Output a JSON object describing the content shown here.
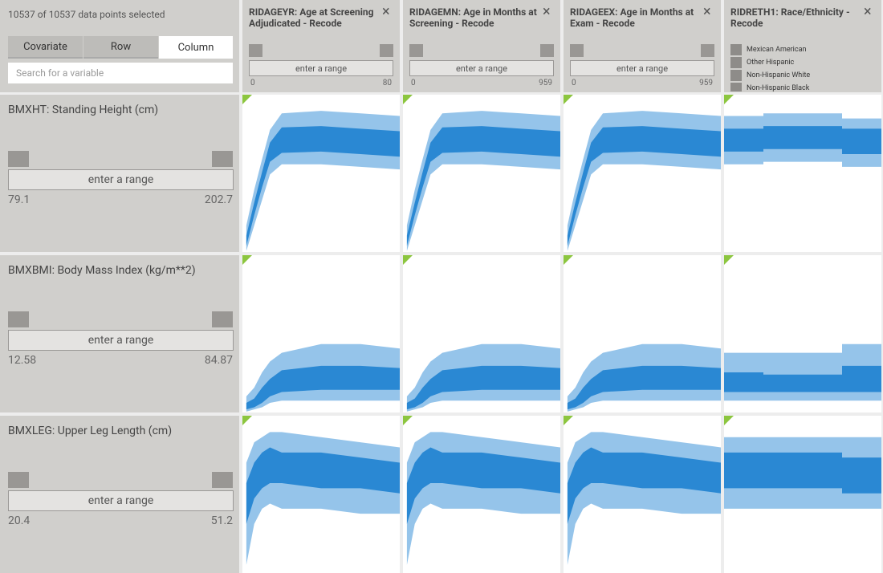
{
  "status": "10537 of 10537 data points selected",
  "tabs": [
    "Covariate",
    "Row",
    "Column"
  ],
  "active_tab": 2,
  "search_placeholder": "Search for a variable",
  "range_placeholder": "enter a range",
  "columns": [
    {
      "title": "RIDAGEYR: Age at Screening Adjudicated - Recode",
      "min": 0,
      "max": 80,
      "x": [
        2,
        6,
        10,
        14,
        20,
        40,
        60,
        80
      ]
    },
    {
      "title": "RIDAGEMN: Age in Months at Screening - Recode",
      "min": 0,
      "max": 959,
      "x": [
        24,
        72,
        120,
        168,
        240,
        480,
        720,
        959
      ]
    },
    {
      "title": "RIDAGEEX: Age in Months at Exam - Recode",
      "min": 0,
      "max": 959,
      "x": [
        24,
        72,
        120,
        168,
        240,
        480,
        720,
        959
      ]
    },
    {
      "title": "RIDRETH1: Race/Ethnicity - Recode",
      "legend": [
        "Mexican American",
        "Other Hispanic",
        "Non-Hispanic White",
        "Non-Hispanic Black"
      ]
    }
  ],
  "rows": [
    {
      "title": "BMXHT: Standing Height (cm)",
      "min": 79.1,
      "max": 202.7,
      "cells": [
        {
          "outer_low": [
            80,
            100,
            120,
            140,
            148,
            148,
            146,
            144
          ],
          "inner_low": [
            84,
            108,
            130,
            150,
            157,
            158,
            156,
            154
          ],
          "inner_high": [
            92,
            118,
            142,
            165,
            177,
            178,
            176,
            174
          ],
          "outer_high": [
            100,
            128,
            152,
            175,
            188,
            190,
            188,
            186
          ]
        },
        {
          "outer_low": [
            80,
            100,
            120,
            140,
            148,
            148,
            146,
            144
          ],
          "inner_low": [
            84,
            108,
            130,
            150,
            157,
            158,
            156,
            154
          ],
          "inner_high": [
            92,
            118,
            142,
            165,
            177,
            178,
            176,
            174
          ],
          "outer_high": [
            100,
            128,
            152,
            175,
            188,
            190,
            188,
            186
          ]
        },
        {
          "outer_low": [
            80,
            100,
            120,
            140,
            148,
            148,
            146,
            144
          ],
          "inner_low": [
            84,
            108,
            130,
            150,
            157,
            158,
            156,
            154
          ],
          "inner_high": [
            92,
            118,
            142,
            165,
            177,
            178,
            176,
            174
          ],
          "outer_high": [
            100,
            128,
            152,
            175,
            188,
            190,
            188,
            186
          ]
        },
        {
          "outer_low": [
            148,
            150,
            150,
            146
          ],
          "inner_low": [
            158,
            160,
            160,
            156
          ],
          "inner_high": [
            176,
            178,
            178,
            176
          ],
          "outer_high": [
            186,
            188,
            188,
            184
          ]
        }
      ]
    },
    {
      "title": "BMXBMI: Body Mass Index (kg/m**2)",
      "min": 12.58,
      "max": 84.87,
      "cells": [
        {
          "outer_low": [
            13,
            14,
            15,
            17,
            18,
            18,
            18,
            18
          ],
          "inner_low": [
            14,
            15,
            17,
            20,
            22,
            23,
            23,
            23
          ],
          "inner_high": [
            17,
            19,
            24,
            28,
            32,
            34,
            34,
            33
          ],
          "outer_high": [
            20,
            24,
            31,
            36,
            40,
            44,
            44,
            42
          ]
        },
        {
          "outer_low": [
            13,
            14,
            15,
            17,
            18,
            18,
            18,
            18
          ],
          "inner_low": [
            14,
            15,
            17,
            20,
            22,
            23,
            23,
            23
          ],
          "inner_high": [
            17,
            19,
            24,
            28,
            32,
            34,
            34,
            33
          ],
          "outer_high": [
            20,
            24,
            31,
            36,
            40,
            44,
            44,
            42
          ]
        },
        {
          "outer_low": [
            13,
            14,
            15,
            17,
            18,
            18,
            18,
            18
          ],
          "inner_low": [
            14,
            15,
            17,
            20,
            22,
            23,
            23,
            23
          ],
          "inner_high": [
            17,
            19,
            24,
            28,
            32,
            34,
            34,
            33
          ],
          "outer_high": [
            20,
            24,
            31,
            36,
            40,
            44,
            44,
            42
          ]
        },
        {
          "outer_low": [
            18,
            18,
            18,
            18
          ],
          "inner_low": [
            22,
            22,
            22,
            22
          ],
          "inner_high": [
            31,
            30,
            30,
            34
          ],
          "outer_high": [
            40,
            40,
            40,
            44
          ]
        }
      ]
    },
    {
      "title": "BMXLEG: Upper Leg Length (cm)",
      "min": 20.4,
      "max": 51.2,
      "cells": [
        {
          "outer_low": [
            22,
            30,
            33,
            34,
            33,
            33,
            32,
            32
          ],
          "inner_low": [
            30,
            35,
            37,
            38,
            38,
            37,
            37,
            36
          ],
          "inner_high": [
            38,
            42,
            44,
            45,
            44,
            44,
            43,
            42
          ],
          "outer_high": [
            42,
            46,
            47,
            48,
            48,
            47,
            46,
            45
          ]
        },
        {
          "outer_low": [
            22,
            30,
            33,
            34,
            33,
            33,
            32,
            32
          ],
          "inner_low": [
            30,
            35,
            37,
            38,
            38,
            37,
            37,
            36
          ],
          "inner_high": [
            38,
            42,
            44,
            45,
            44,
            44,
            43,
            42
          ],
          "outer_high": [
            42,
            46,
            47,
            48,
            48,
            47,
            46,
            45
          ]
        },
        {
          "outer_low": [
            22,
            30,
            33,
            34,
            33,
            33,
            32,
            32
          ],
          "inner_low": [
            30,
            35,
            37,
            38,
            38,
            37,
            37,
            36
          ],
          "inner_high": [
            38,
            42,
            44,
            45,
            44,
            44,
            43,
            42
          ],
          "outer_high": [
            42,
            46,
            47,
            48,
            48,
            47,
            46,
            45
          ]
        },
        {
          "outer_low": [
            33,
            33,
            33,
            33
          ],
          "inner_low": [
            37,
            37,
            37,
            36
          ],
          "inner_high": [
            44,
            44,
            44,
            43
          ],
          "outer_high": [
            47,
            47,
            47,
            47
          ]
        }
      ]
    }
  ]
}
